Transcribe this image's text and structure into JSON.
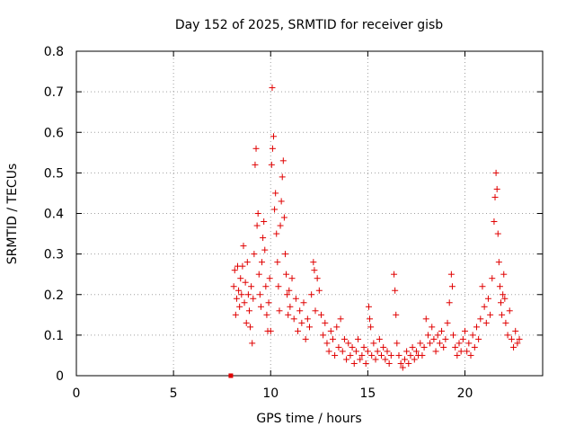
{
  "chart_data": {
    "type": "scatter",
    "title": "Day 152 of 2025, SRMTID for receiver gisb",
    "xlabel": "GPS time / hours",
    "ylabel": "SRMTID / TECUs",
    "xlim": [
      0,
      24
    ],
    "ylim": [
      0,
      0.8
    ],
    "xticks": [
      0,
      5,
      10,
      15,
      20
    ],
    "xtick_labels": [
      "0",
      "5",
      "10",
      "15",
      "20"
    ],
    "yticks": [
      0,
      0.1,
      0.2,
      0.3,
      0.4,
      0.5,
      0.6,
      0.7,
      0.8
    ],
    "ytick_labels": [
      "0",
      "0.1",
      "0.2",
      "0.3",
      "0.4",
      "0.5",
      "0.6",
      "0.7",
      "0.8"
    ],
    "grid": true,
    "marker": "plus",
    "color": "#e00000",
    "series": [
      {
        "name": "SRMTID",
        "points": [
          [
            7.95,
            0.0
          ],
          [
            8.1,
            0.22
          ],
          [
            8.15,
            0.26
          ],
          [
            8.2,
            0.15
          ],
          [
            8.25,
            0.19
          ],
          [
            8.3,
            0.27
          ],
          [
            8.35,
            0.21
          ],
          [
            8.4,
            0.17
          ],
          [
            8.45,
            0.24
          ],
          [
            8.5,
            0.2
          ],
          [
            8.55,
            0.27
          ],
          [
            8.6,
            0.32
          ],
          [
            8.65,
            0.18
          ],
          [
            8.7,
            0.23
          ],
          [
            8.75,
            0.13
          ],
          [
            8.8,
            0.28
          ],
          [
            8.85,
            0.2
          ],
          [
            8.9,
            0.16
          ],
          [
            8.95,
            0.12
          ],
          [
            9.0,
            0.22
          ],
          [
            9.05,
            0.08
          ],
          [
            9.1,
            0.19
          ],
          [
            9.15,
            0.3
          ],
          [
            9.2,
            0.52
          ],
          [
            9.25,
            0.56
          ],
          [
            9.3,
            0.37
          ],
          [
            9.35,
            0.4
          ],
          [
            9.4,
            0.25
          ],
          [
            9.45,
            0.2
          ],
          [
            9.5,
            0.17
          ],
          [
            9.55,
            0.28
          ],
          [
            9.6,
            0.34
          ],
          [
            9.65,
            0.38
          ],
          [
            9.7,
            0.31
          ],
          [
            9.75,
            0.22
          ],
          [
            9.8,
            0.15
          ],
          [
            9.85,
            0.11
          ],
          [
            9.9,
            0.18
          ],
          [
            9.95,
            0.24
          ],
          [
            10.0,
            0.11
          ],
          [
            10.05,
            0.52
          ],
          [
            10.1,
            0.56
          ],
          [
            10.15,
            0.59
          ],
          [
            10.08,
            0.71
          ],
          [
            10.2,
            0.41
          ],
          [
            10.25,
            0.45
          ],
          [
            10.3,
            0.35
          ],
          [
            10.35,
            0.28
          ],
          [
            10.4,
            0.22
          ],
          [
            10.45,
            0.16
          ],
          [
            10.5,
            0.37
          ],
          [
            10.55,
            0.43
          ],
          [
            10.6,
            0.49
          ],
          [
            10.65,
            0.53
          ],
          [
            10.7,
            0.39
          ],
          [
            10.75,
            0.3
          ],
          [
            10.8,
            0.25
          ],
          [
            10.85,
            0.2
          ],
          [
            10.9,
            0.15
          ],
          [
            10.95,
            0.21
          ],
          [
            11.0,
            0.17
          ],
          [
            11.1,
            0.24
          ],
          [
            11.2,
            0.14
          ],
          [
            11.3,
            0.19
          ],
          [
            11.4,
            0.11
          ],
          [
            11.5,
            0.16
          ],
          [
            11.6,
            0.13
          ],
          [
            11.7,
            0.18
          ],
          [
            11.8,
            0.09
          ],
          [
            11.9,
            0.14
          ],
          [
            12.0,
            0.12
          ],
          [
            12.1,
            0.2
          ],
          [
            12.2,
            0.28
          ],
          [
            12.25,
            0.26
          ],
          [
            12.3,
            0.16
          ],
          [
            12.4,
            0.24
          ],
          [
            12.5,
            0.21
          ],
          [
            12.6,
            0.15
          ],
          [
            12.7,
            0.1
          ],
          [
            12.8,
            0.13
          ],
          [
            12.9,
            0.08
          ],
          [
            13.0,
            0.06
          ],
          [
            13.1,
            0.11
          ],
          [
            13.2,
            0.09
          ],
          [
            13.3,
            0.05
          ],
          [
            13.4,
            0.12
          ],
          [
            13.5,
            0.07
          ],
          [
            13.6,
            0.14
          ],
          [
            13.7,
            0.06
          ],
          [
            13.8,
            0.09
          ],
          [
            13.9,
            0.04
          ],
          [
            14.0,
            0.08
          ],
          [
            14.1,
            0.05
          ],
          [
            14.2,
            0.07
          ],
          [
            14.3,
            0.03
          ],
          [
            14.4,
            0.06
          ],
          [
            14.5,
            0.09
          ],
          [
            14.6,
            0.04
          ],
          [
            14.7,
            0.05
          ],
          [
            14.8,
            0.07
          ],
          [
            14.9,
            0.03
          ],
          [
            15.0,
            0.06
          ],
          [
            15.05,
            0.17
          ],
          [
            15.1,
            0.14
          ],
          [
            15.15,
            0.12
          ],
          [
            15.2,
            0.05
          ],
          [
            15.3,
            0.08
          ],
          [
            15.4,
            0.04
          ],
          [
            15.5,
            0.06
          ],
          [
            15.6,
            0.09
          ],
          [
            15.7,
            0.05
          ],
          [
            15.8,
            0.07
          ],
          [
            15.9,
            0.04
          ],
          [
            16.0,
            0.06
          ],
          [
            16.1,
            0.03
          ],
          [
            16.2,
            0.05
          ],
          [
            16.35,
            0.25
          ],
          [
            16.4,
            0.21
          ],
          [
            16.45,
            0.15
          ],
          [
            16.5,
            0.08
          ],
          [
            16.6,
            0.05
          ],
          [
            16.7,
            0.03
          ],
          [
            16.8,
            0.02
          ],
          [
            16.9,
            0.04
          ],
          [
            17.0,
            0.06
          ],
          [
            17.1,
            0.03
          ],
          [
            17.2,
            0.05
          ],
          [
            17.3,
            0.07
          ],
          [
            17.4,
            0.04
          ],
          [
            17.5,
            0.06
          ],
          [
            17.6,
            0.05
          ],
          [
            17.7,
            0.08
          ],
          [
            17.8,
            0.05
          ],
          [
            17.9,
            0.07
          ],
          [
            18.0,
            0.14
          ],
          [
            18.1,
            0.1
          ],
          [
            18.2,
            0.08
          ],
          [
            18.3,
            0.12
          ],
          [
            18.4,
            0.09
          ],
          [
            18.5,
            0.06
          ],
          [
            18.6,
            0.1
          ],
          [
            18.7,
            0.08
          ],
          [
            18.8,
            0.11
          ],
          [
            18.9,
            0.07
          ],
          [
            19.0,
            0.09
          ],
          [
            19.1,
            0.13
          ],
          [
            19.2,
            0.18
          ],
          [
            19.3,
            0.25
          ],
          [
            19.35,
            0.22
          ],
          [
            19.4,
            0.1
          ],
          [
            19.5,
            0.07
          ],
          [
            19.6,
            0.05
          ],
          [
            19.7,
            0.08
          ],
          [
            19.8,
            0.06
          ],
          [
            19.9,
            0.09
          ],
          [
            20.0,
            0.11
          ],
          [
            20.1,
            0.06
          ],
          [
            20.2,
            0.08
          ],
          [
            20.3,
            0.05
          ],
          [
            20.4,
            0.1
          ],
          [
            20.5,
            0.07
          ],
          [
            20.6,
            0.12
          ],
          [
            20.7,
            0.09
          ],
          [
            20.8,
            0.14
          ],
          [
            20.9,
            0.22
          ],
          [
            21.0,
            0.17
          ],
          [
            21.1,
            0.13
          ],
          [
            21.2,
            0.19
          ],
          [
            21.3,
            0.15
          ],
          [
            21.4,
            0.24
          ],
          [
            21.5,
            0.38
          ],
          [
            21.55,
            0.44
          ],
          [
            21.6,
            0.5
          ],
          [
            21.65,
            0.46
          ],
          [
            21.7,
            0.35
          ],
          [
            21.75,
            0.28
          ],
          [
            21.8,
            0.22
          ],
          [
            21.85,
            0.18
          ],
          [
            21.9,
            0.15
          ],
          [
            21.95,
            0.2
          ],
          [
            22.0,
            0.25
          ],
          [
            22.05,
            0.19
          ],
          [
            22.1,
            0.13
          ],
          [
            22.2,
            0.1
          ],
          [
            22.3,
            0.16
          ],
          [
            22.4,
            0.09
          ],
          [
            22.5,
            0.07
          ],
          [
            22.6,
            0.11
          ],
          [
            22.7,
            0.08
          ],
          [
            22.8,
            0.09
          ]
        ]
      }
    ]
  }
}
